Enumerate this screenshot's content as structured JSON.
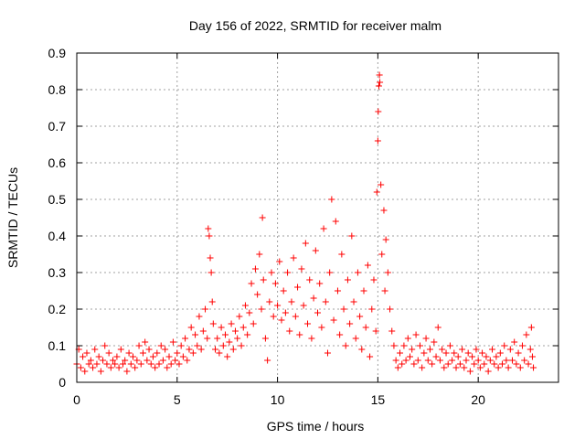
{
  "chart_data": {
    "type": "scatter",
    "title": "Day 156 of 2022, SRMTID for receiver malm",
    "xlabel": "GPS time / hours",
    "ylabel": "SRMTID / TECUs",
    "xlim": [
      0,
      24
    ],
    "ylim": [
      0,
      0.9
    ],
    "xticks": [
      0,
      5,
      10,
      15,
      20
    ],
    "xtick_labels": [
      "0",
      "5",
      "10",
      "15",
      "20"
    ],
    "yticks": [
      0,
      0.1,
      0.2,
      0.3,
      0.4,
      0.5,
      0.6,
      0.7,
      0.8,
      0.9
    ],
    "ytick_labels": [
      "0",
      "0.1",
      "0.2",
      "0.3",
      "0.4",
      "0.5",
      "0.6",
      "0.7",
      "0.8",
      "0.9"
    ],
    "grid": true,
    "marker": "plus",
    "color": "#ff0000",
    "series": [
      {
        "name": "SRMTID",
        "points": [
          [
            0.0,
            0.05
          ],
          [
            0.1,
            0.09
          ],
          [
            0.2,
            0.04
          ],
          [
            0.3,
            0.07
          ],
          [
            0.4,
            0.03
          ],
          [
            0.5,
            0.08
          ],
          [
            0.6,
            0.05
          ],
          [
            0.7,
            0.06
          ],
          [
            0.8,
            0.04
          ],
          [
            0.9,
            0.09
          ],
          [
            1.0,
            0.05
          ],
          [
            1.1,
            0.07
          ],
          [
            1.2,
            0.03
          ],
          [
            1.3,
            0.06
          ],
          [
            1.4,
            0.1
          ],
          [
            1.5,
            0.05
          ],
          [
            1.6,
            0.08
          ],
          [
            1.7,
            0.04
          ],
          [
            1.8,
            0.06
          ],
          [
            1.9,
            0.05
          ],
          [
            2.0,
            0.07
          ],
          [
            2.1,
            0.04
          ],
          [
            2.2,
            0.09
          ],
          [
            2.3,
            0.05
          ],
          [
            2.4,
            0.06
          ],
          [
            2.5,
            0.03
          ],
          [
            2.6,
            0.08
          ],
          [
            2.7,
            0.05
          ],
          [
            2.8,
            0.07
          ],
          [
            2.9,
            0.04
          ],
          [
            3.0,
            0.06
          ],
          [
            3.1,
            0.1
          ],
          [
            3.2,
            0.05
          ],
          [
            3.3,
            0.08
          ],
          [
            3.4,
            0.11
          ],
          [
            3.5,
            0.06
          ],
          [
            3.6,
            0.09
          ],
          [
            3.7,
            0.05
          ],
          [
            3.8,
            0.07
          ],
          [
            3.9,
            0.04
          ],
          [
            4.0,
            0.08
          ],
          [
            4.1,
            0.05
          ],
          [
            4.2,
            0.1
          ],
          [
            4.3,
            0.06
          ],
          [
            4.4,
            0.09
          ],
          [
            4.5,
            0.04
          ],
          [
            4.6,
            0.07
          ],
          [
            4.7,
            0.05
          ],
          [
            4.8,
            0.11
          ],
          [
            4.9,
            0.06
          ],
          [
            5.0,
            0.08
          ],
          [
            5.1,
            0.05
          ],
          [
            5.2,
            0.1
          ],
          [
            5.3,
            0.07
          ],
          [
            5.4,
            0.12
          ],
          [
            5.5,
            0.06
          ],
          [
            5.6,
            0.09
          ],
          [
            5.7,
            0.15
          ],
          [
            5.8,
            0.08
          ],
          [
            5.9,
            0.13
          ],
          [
            6.0,
            0.1
          ],
          [
            6.1,
            0.18
          ],
          [
            6.2,
            0.09
          ],
          [
            6.3,
            0.14
          ],
          [
            6.4,
            0.2
          ],
          [
            6.5,
            0.12
          ],
          [
            6.55,
            0.42
          ],
          [
            6.6,
            0.4
          ],
          [
            6.65,
            0.34
          ],
          [
            6.7,
            0.3
          ],
          [
            6.75,
            0.22
          ],
          [
            6.8,
            0.16
          ],
          [
            6.9,
            0.09
          ],
          [
            7.0,
            0.12
          ],
          [
            7.1,
            0.08
          ],
          [
            7.2,
            0.15
          ],
          [
            7.3,
            0.1
          ],
          [
            7.4,
            0.13
          ],
          [
            7.5,
            0.07
          ],
          [
            7.6,
            0.11
          ],
          [
            7.7,
            0.16
          ],
          [
            7.8,
            0.09
          ],
          [
            7.9,
            0.14
          ],
          [
            8.0,
            0.12
          ],
          [
            8.1,
            0.18
          ],
          [
            8.2,
            0.1
          ],
          [
            8.3,
            0.15
          ],
          [
            8.4,
            0.21
          ],
          [
            8.5,
            0.13
          ],
          [
            8.6,
            0.19
          ],
          [
            8.7,
            0.27
          ],
          [
            8.8,
            0.16
          ],
          [
            8.9,
            0.31
          ],
          [
            9.0,
            0.24
          ],
          [
            9.1,
            0.35
          ],
          [
            9.2,
            0.2
          ],
          [
            9.25,
            0.45
          ],
          [
            9.3,
            0.28
          ],
          [
            9.4,
            0.12
          ],
          [
            9.5,
            0.06
          ],
          [
            9.6,
            0.22
          ],
          [
            9.7,
            0.3
          ],
          [
            9.8,
            0.18
          ],
          [
            9.9,
            0.27
          ],
          [
            10.0,
            0.21
          ],
          [
            10.1,
            0.33
          ],
          [
            10.2,
            0.17
          ],
          [
            10.3,
            0.25
          ],
          [
            10.4,
            0.19
          ],
          [
            10.5,
            0.3
          ],
          [
            10.6,
            0.14
          ],
          [
            10.7,
            0.22
          ],
          [
            10.8,
            0.34
          ],
          [
            10.9,
            0.18
          ],
          [
            11.0,
            0.26
          ],
          [
            11.1,
            0.13
          ],
          [
            11.2,
            0.31
          ],
          [
            11.3,
            0.21
          ],
          [
            11.4,
            0.38
          ],
          [
            11.5,
            0.16
          ],
          [
            11.6,
            0.28
          ],
          [
            11.7,
            0.12
          ],
          [
            11.8,
            0.23
          ],
          [
            11.9,
            0.36
          ],
          [
            12.0,
            0.19
          ],
          [
            12.1,
            0.27
          ],
          [
            12.2,
            0.15
          ],
          [
            12.3,
            0.42
          ],
          [
            12.4,
            0.22
          ],
          [
            12.5,
            0.08
          ],
          [
            12.6,
            0.3
          ],
          [
            12.7,
            0.5
          ],
          [
            12.8,
            0.17
          ],
          [
            12.9,
            0.44
          ],
          [
            13.0,
            0.25
          ],
          [
            13.1,
            0.13
          ],
          [
            13.2,
            0.35
          ],
          [
            13.3,
            0.2
          ],
          [
            13.4,
            0.1
          ],
          [
            13.5,
            0.28
          ],
          [
            13.6,
            0.16
          ],
          [
            13.7,
            0.4
          ],
          [
            13.8,
            0.22
          ],
          [
            13.9,
            0.12
          ],
          [
            14.0,
            0.3
          ],
          [
            14.1,
            0.18
          ],
          [
            14.2,
            0.09
          ],
          [
            14.3,
            0.25
          ],
          [
            14.4,
            0.15
          ],
          [
            14.5,
            0.32
          ],
          [
            14.6,
            0.07
          ],
          [
            14.7,
            0.2
          ],
          [
            14.8,
            0.28
          ],
          [
            14.9,
            0.14
          ],
          [
            14.95,
            0.52
          ],
          [
            15.0,
            0.66
          ],
          [
            15.02,
            0.74
          ],
          [
            15.05,
            0.81
          ],
          [
            15.08,
            0.84
          ],
          [
            15.1,
            0.82
          ],
          [
            15.15,
            0.54
          ],
          [
            15.2,
            0.35
          ],
          [
            15.3,
            0.47
          ],
          [
            15.35,
            0.25
          ],
          [
            15.4,
            0.39
          ],
          [
            15.5,
            0.3
          ],
          [
            15.6,
            0.2
          ],
          [
            15.7,
            0.14
          ],
          [
            15.8,
            0.1
          ],
          [
            15.9,
            0.06
          ],
          [
            16.0,
            0.04
          ],
          [
            16.1,
            0.08
          ],
          [
            16.2,
            0.05
          ],
          [
            16.3,
            0.1
          ],
          [
            16.4,
            0.06
          ],
          [
            16.5,
            0.12
          ],
          [
            16.6,
            0.07
          ],
          [
            16.7,
            0.09
          ],
          [
            16.8,
            0.05
          ],
          [
            16.9,
            0.13
          ],
          [
            17.0,
            0.06
          ],
          [
            17.1,
            0.1
          ],
          [
            17.2,
            0.04
          ],
          [
            17.3,
            0.08
          ],
          [
            17.4,
            0.12
          ],
          [
            17.5,
            0.06
          ],
          [
            17.6,
            0.09
          ],
          [
            17.7,
            0.05
          ],
          [
            17.8,
            0.11
          ],
          [
            17.9,
            0.07
          ],
          [
            18.0,
            0.15
          ],
          [
            18.1,
            0.06
          ],
          [
            18.2,
            0.09
          ],
          [
            18.3,
            0.04
          ],
          [
            18.4,
            0.08
          ],
          [
            18.5,
            0.05
          ],
          [
            18.6,
            0.1
          ],
          [
            18.7,
            0.06
          ],
          [
            18.8,
            0.08
          ],
          [
            18.9,
            0.04
          ],
          [
            19.0,
            0.07
          ],
          [
            19.1,
            0.05
          ],
          [
            19.2,
            0.09
          ],
          [
            19.3,
            0.04
          ],
          [
            19.4,
            0.06
          ],
          [
            19.5,
            0.08
          ],
          [
            19.6,
            0.03
          ],
          [
            19.7,
            0.07
          ],
          [
            19.8,
            0.05
          ],
          [
            19.9,
            0.09
          ],
          [
            20.0,
            0.06
          ],
          [
            20.1,
            0.04
          ],
          [
            20.2,
            0.08
          ],
          [
            20.3,
            0.05
          ],
          [
            20.4,
            0.07
          ],
          [
            20.5,
            0.03
          ],
          [
            20.6,
            0.06
          ],
          [
            20.7,
            0.09
          ],
          [
            20.8,
            0.05
          ],
          [
            20.9,
            0.07
          ],
          [
            21.0,
            0.04
          ],
          [
            21.1,
            0.08
          ],
          [
            21.2,
            0.05
          ],
          [
            21.3,
            0.1
          ],
          [
            21.4,
            0.06
          ],
          [
            21.5,
            0.04
          ],
          [
            21.6,
            0.09
          ],
          [
            21.7,
            0.06
          ],
          [
            21.8,
            0.11
          ],
          [
            21.9,
            0.05
          ],
          [
            22.0,
            0.08
          ],
          [
            22.1,
            0.04
          ],
          [
            22.2,
            0.1
          ],
          [
            22.3,
            0.06
          ],
          [
            22.4,
            0.13
          ],
          [
            22.5,
            0.05
          ],
          [
            22.6,
            0.09
          ],
          [
            22.65,
            0.15
          ],
          [
            22.7,
            0.07
          ],
          [
            22.75,
            0.04
          ]
        ]
      }
    ]
  }
}
